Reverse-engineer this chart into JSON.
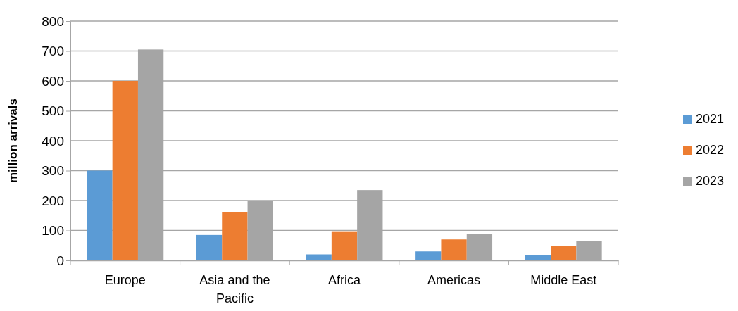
{
  "chart_data": {
    "type": "bar",
    "ylabel": "million arrivals",
    "categories": [
      "Europe",
      "Asia and the Pacific",
      "Africa",
      "Americas",
      "Middle East"
    ],
    "series": [
      {
        "name": "2021",
        "color": "#5b9bd5",
        "values": [
          300,
          85,
          20,
          30,
          18
        ]
      },
      {
        "name": "2022",
        "color": "#ed7d31",
        "values": [
          600,
          160,
          95,
          70,
          48
        ]
      },
      {
        "name": "2023",
        "color": "#a5a5a5",
        "values": [
          705,
          200,
          235,
          88,
          65
        ]
      }
    ],
    "ylim": [
      0,
      800
    ],
    "yticks": [
      0,
      100,
      200,
      300,
      400,
      500,
      600,
      700,
      800
    ],
    "grid": "y",
    "legend": "right"
  }
}
